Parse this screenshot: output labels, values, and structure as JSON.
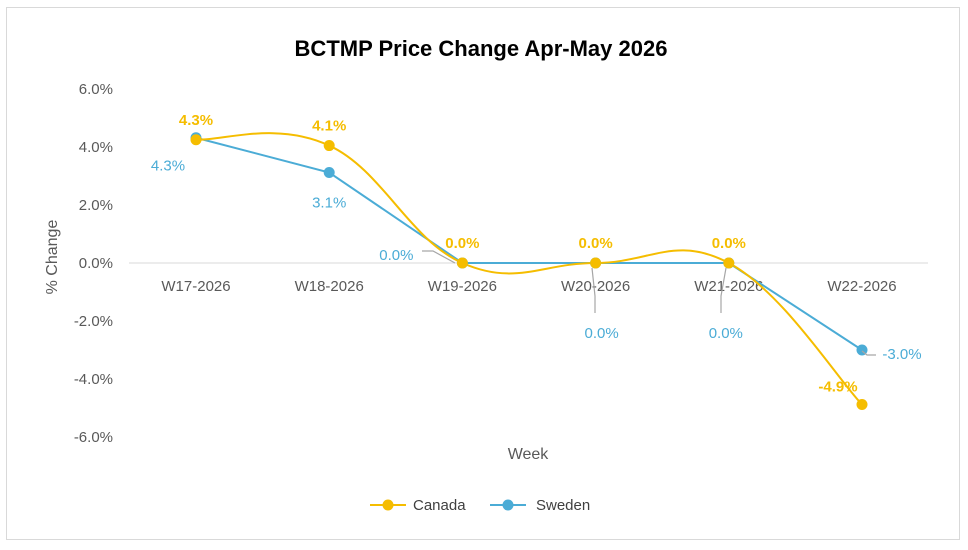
{
  "chart_data": {
    "type": "line",
    "title": "BCTMP Price Change Apr-May 2026",
    "xlabel": "Week",
    "ylabel": "% Change",
    "categories": [
      "W17-2026",
      "W18-2026",
      "W19-2026",
      "W20-2026",
      "W21-2026",
      "W22-2026"
    ],
    "y_ticks": [
      "6.0%",
      "4.0%",
      "2.0%",
      "0.0%",
      "-2.0%",
      "-4.0%",
      "-6.0%"
    ],
    "ylim": [
      -6,
      6
    ],
    "grid": false,
    "legend_position": "bottom",
    "smoothed": true,
    "series": [
      {
        "name": "Canada",
        "color": "#f5bd00",
        "values": [
          4.25,
          4.05,
          0.0,
          0.0,
          0.0,
          -4.88
        ],
        "labels": [
          "4.3%",
          "4.1%",
          "0.0%",
          "0.0%",
          "0.0%",
          "-4.9%"
        ]
      },
      {
        "name": "Sweden",
        "color": "#4bacd6",
        "values": [
          4.32,
          3.12,
          0.0,
          0.0,
          0.0,
          -3.0
        ],
        "labels": [
          "4.3%",
          "3.1%",
          "0.0%",
          "0.0%",
          "0.0%",
          "-3.0%"
        ]
      }
    ]
  }
}
